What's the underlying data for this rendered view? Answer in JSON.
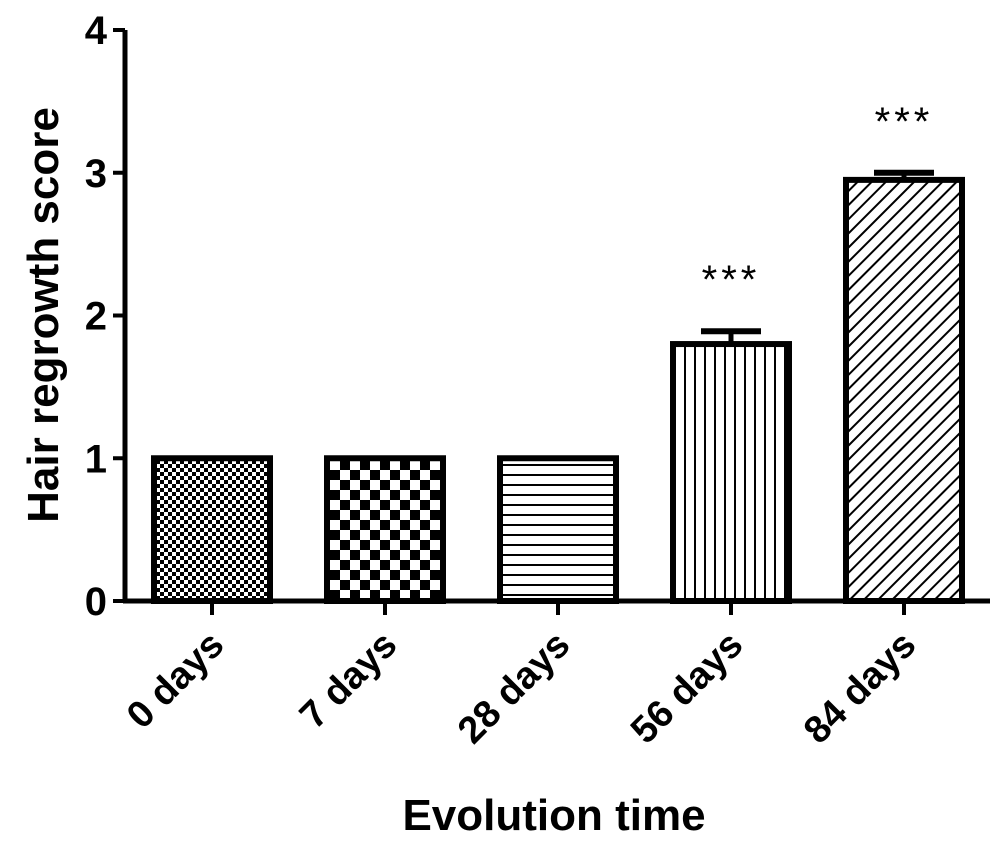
{
  "chart_data": {
    "type": "bar",
    "categories": [
      "0 days",
      "7 days",
      "28 days",
      "56 days",
      "84 days"
    ],
    "values": [
      1.0,
      1.0,
      1.0,
      1.8,
      2.95
    ],
    "errors": [
      0,
      0,
      0,
      0.09,
      0.05
    ],
    "annotations": [
      "",
      "",
      "",
      "***",
      "***"
    ],
    "patterns": [
      "fine-checker",
      "checker",
      "horizontal-lines",
      "vertical-lines",
      "diagonal-lines"
    ],
    "xlabel": "Evolution time",
    "ylabel": "Hair regrowth score",
    "ylim": [
      0,
      4
    ],
    "yticks": [
      "0",
      "1",
      "2",
      "3",
      "4"
    ],
    "grid": false,
    "colors": {
      "bar_stroke": "#000000",
      "bar_fill": "#ffffff",
      "pattern": "#000000"
    }
  }
}
